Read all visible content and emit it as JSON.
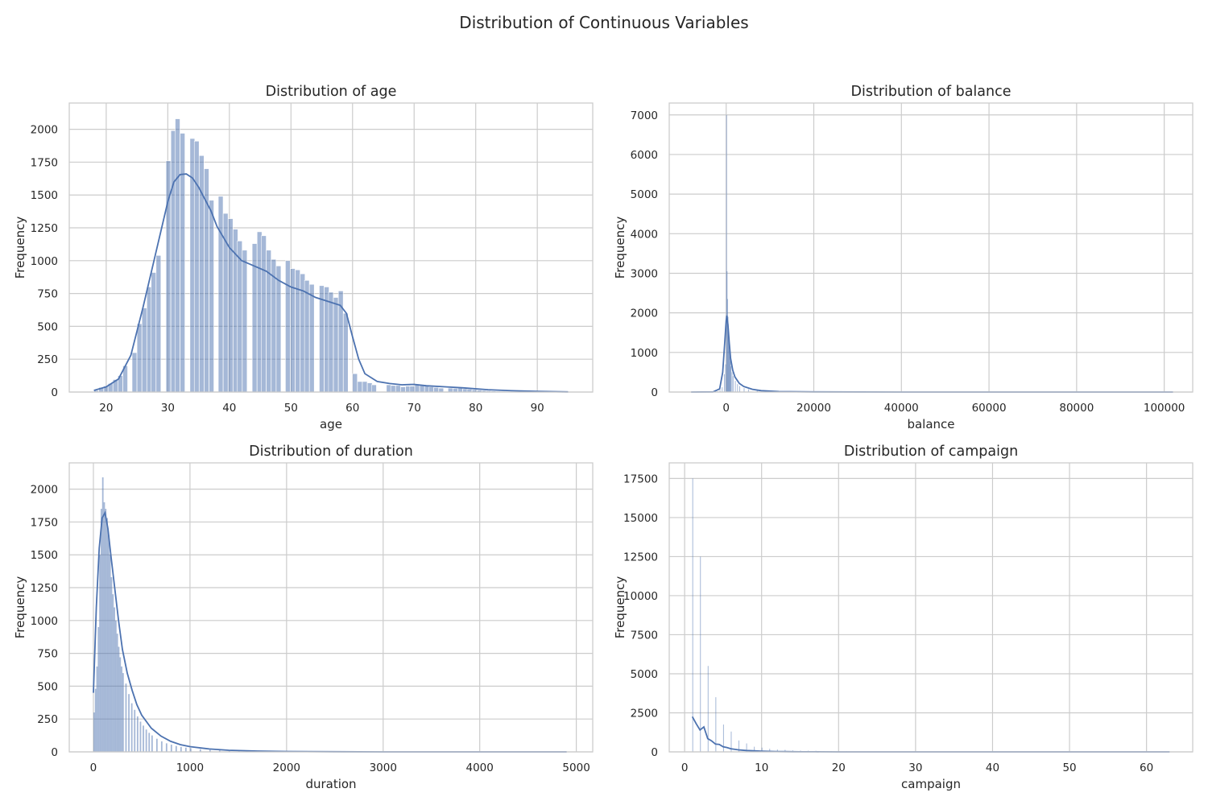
{
  "suptitle": "Distribution of Continuous Variables",
  "colors": {
    "bar": "#4c72b0",
    "bar_fill_opacity": 0.5,
    "kde": "#4c72b0",
    "grid": "#cccccc",
    "spine": "#cccccc"
  },
  "chart_data": [
    {
      "type": "histogram",
      "title": "Distribution of age",
      "xlabel": "age",
      "ylabel": "Frequency",
      "xlim": [
        14,
        99
      ],
      "ylim": [
        0,
        2200
      ],
      "xticks": [
        20,
        30,
        40,
        50,
        60,
        70,
        80,
        90
      ],
      "yticks": [
        0,
        250,
        500,
        750,
        1000,
        1250,
        1500,
        1750,
        2000
      ],
      "grid": true,
      "bin_width": 0.78,
      "bins": [
        [
          18.0,
          12
        ],
        [
          18.8,
          35
        ],
        [
          19.6,
          45
        ],
        [
          20.3,
          65
        ],
        [
          21.1,
          95
        ],
        [
          21.9,
          125
        ],
        [
          22.7,
          200
        ],
        [
          24.2,
          300
        ],
        [
          25.0,
          520
        ],
        [
          25.8,
          640
        ],
        [
          26.6,
          800
        ],
        [
          27.3,
          910
        ],
        [
          28.1,
          1040
        ],
        [
          29.7,
          1760
        ],
        [
          30.5,
          1990
        ],
        [
          31.2,
          2080
        ],
        [
          32.0,
          1970
        ],
        [
          33.6,
          1930
        ],
        [
          34.3,
          1910
        ],
        [
          35.1,
          1800
        ],
        [
          35.9,
          1700
        ],
        [
          36.7,
          1460
        ],
        [
          38.2,
          1490
        ],
        [
          39.0,
          1360
        ],
        [
          39.8,
          1320
        ],
        [
          40.6,
          1240
        ],
        [
          41.3,
          1150
        ],
        [
          42.1,
          1080
        ],
        [
          43.7,
          1130
        ],
        [
          44.5,
          1220
        ],
        [
          45.2,
          1190
        ],
        [
          46.0,
          1080
        ],
        [
          46.8,
          1010
        ],
        [
          47.6,
          960
        ],
        [
          49.1,
          1000
        ],
        [
          49.9,
          940
        ],
        [
          50.7,
          930
        ],
        [
          51.5,
          900
        ],
        [
          52.2,
          850
        ],
        [
          53.0,
          820
        ],
        [
          54.6,
          810
        ],
        [
          55.4,
          800
        ],
        [
          56.1,
          760
        ],
        [
          56.9,
          720
        ],
        [
          57.7,
          770
        ],
        [
          58.5,
          600
        ],
        [
          60.0,
          140
        ],
        [
          60.8,
          80
        ],
        [
          61.6,
          80
        ],
        [
          62.4,
          70
        ],
        [
          63.1,
          55
        ],
        [
          65.5,
          55
        ],
        [
          66.2,
          50
        ],
        [
          67.0,
          50
        ],
        [
          67.8,
          40
        ],
        [
          68.6,
          45
        ],
        [
          69.3,
          45
        ],
        [
          70.1,
          60
        ],
        [
          70.9,
          55
        ],
        [
          71.7,
          45
        ],
        [
          72.4,
          40
        ],
        [
          73.2,
          35
        ],
        [
          74.0,
          30
        ],
        [
          75.5,
          30
        ],
        [
          76.3,
          28
        ],
        [
          77.1,
          30
        ],
        [
          77.9,
          25
        ],
        [
          78.6,
          22
        ],
        [
          79.4,
          18
        ],
        [
          80.2,
          15
        ],
        [
          81.0,
          12
        ],
        [
          81.7,
          10
        ],
        [
          82.5,
          8
        ],
        [
          83.3,
          6
        ],
        [
          84.8,
          5
        ],
        [
          85.6,
          4
        ],
        [
          86.4,
          4
        ],
        [
          87.2,
          3
        ],
        [
          89.5,
          2
        ],
        [
          92.6,
          1
        ],
        [
          95.0,
          1
        ]
      ],
      "kde": [
        [
          18,
          12
        ],
        [
          20,
          40
        ],
        [
          22,
          100
        ],
        [
          24,
          280
        ],
        [
          26,
          650
        ],
        [
          28,
          1050
        ],
        [
          30,
          1450
        ],
        [
          31,
          1600
        ],
        [
          32,
          1655
        ],
        [
          33,
          1660
        ],
        [
          34,
          1630
        ],
        [
          35,
          1560
        ],
        [
          36,
          1470
        ],
        [
          37,
          1380
        ],
        [
          38,
          1260
        ],
        [
          40,
          1100
        ],
        [
          42,
          1000
        ],
        [
          44,
          960
        ],
        [
          46,
          920
        ],
        [
          48,
          850
        ],
        [
          50,
          800
        ],
        [
          52,
          770
        ],
        [
          54,
          720
        ],
        [
          56,
          690
        ],
        [
          58,
          660
        ],
        [
          59,
          600
        ],
        [
          60,
          420
        ],
        [
          61,
          250
        ],
        [
          62,
          140
        ],
        [
          64,
          80
        ],
        [
          66,
          65
        ],
        [
          68,
          55
        ],
        [
          70,
          58
        ],
        [
          72,
          48
        ],
        [
          75,
          40
        ],
        [
          78,
          32
        ],
        [
          82,
          18
        ],
        [
          86,
          10
        ],
        [
          90,
          5
        ],
        [
          95,
          1
        ]
      ]
    },
    {
      "type": "histogram",
      "title": "Distribution of balance",
      "xlabel": "balance",
      "ylabel": "Frequency",
      "xlim": [
        -13000,
        106500
      ],
      "ylim": [
        0,
        7300
      ],
      "xticks": [
        0,
        20000,
        40000,
        60000,
        80000,
        100000
      ],
      "yticks": [
        0,
        1000,
        2000,
        3000,
        4000,
        5000,
        6000,
        7000
      ],
      "grid": true,
      "bin_width": 110,
      "bins": [
        [
          -8000,
          2
        ],
        [
          -2000,
          20
        ],
        [
          -1500,
          50
        ],
        [
          -1000,
          120
        ],
        [
          -500,
          450
        ],
        [
          -220,
          700
        ],
        [
          0,
          7000
        ],
        [
          110,
          3050
        ],
        [
          220,
          2350
        ],
        [
          330,
          1900
        ],
        [
          440,
          1500
        ],
        [
          550,
          1250
        ],
        [
          660,
          1050
        ],
        [
          770,
          900
        ],
        [
          880,
          780
        ],
        [
          1000,
          650
        ],
        [
          1250,
          500
        ],
        [
          1500,
          400
        ],
        [
          2000,
          280
        ],
        [
          2500,
          200
        ],
        [
          3000,
          150
        ],
        [
          4000,
          100
        ],
        [
          5000,
          70
        ],
        [
          7000,
          40
        ],
        [
          10000,
          20
        ],
        [
          15000,
          8
        ],
        [
          20000,
          4
        ],
        [
          30000,
          2
        ],
        [
          50000,
          1
        ],
        [
          70000,
          1
        ],
        [
          100000,
          1
        ]
      ],
      "kde": [
        [
          -8000,
          0
        ],
        [
          -3000,
          5
        ],
        [
          -1500,
          80
        ],
        [
          -800,
          500
        ],
        [
          -300,
          1300
        ],
        [
          0,
          1800
        ],
        [
          150,
          1930
        ],
        [
          400,
          1700
        ],
        [
          700,
          1250
        ],
        [
          1000,
          850
        ],
        [
          1500,
          550
        ],
        [
          2000,
          380
        ],
        [
          3000,
          220
        ],
        [
          4000,
          140
        ],
        [
          6000,
          70
        ],
        [
          8000,
          35
        ],
        [
          12000,
          12
        ],
        [
          20000,
          4
        ],
        [
          40000,
          1
        ],
        [
          70000,
          0
        ],
        [
          102000,
          0
        ]
      ]
    },
    {
      "type": "histogram",
      "title": "Distribution of duration",
      "xlabel": "duration",
      "ylabel": "Frequency",
      "xlim": [
        -250,
        5170
      ],
      "ylim": [
        0,
        2200
      ],
      "xticks": [
        0,
        1000,
        2000,
        3000,
        4000,
        5000
      ],
      "yticks": [
        0,
        250,
        500,
        750,
        1000,
        1250,
        1500,
        1750,
        2000
      ],
      "grid": true,
      "bin_width": 15,
      "bins": [
        [
          0,
          300
        ],
        [
          15,
          480
        ],
        [
          30,
          650
        ],
        [
          45,
          950
        ],
        [
          60,
          1500
        ],
        [
          75,
          1850
        ],
        [
          90,
          2090
        ],
        [
          105,
          1900
        ],
        [
          120,
          1850
        ],
        [
          135,
          1780
        ],
        [
          150,
          1650
        ],
        [
          165,
          1500
        ],
        [
          180,
          1330
        ],
        [
          195,
          1200
        ],
        [
          210,
          1100
        ],
        [
          225,
          1000
        ],
        [
          240,
          900
        ],
        [
          255,
          800
        ],
        [
          270,
          720
        ],
        [
          285,
          650
        ],
        [
          300,
          600
        ],
        [
          330,
          520
        ],
        [
          360,
          440
        ],
        [
          390,
          370
        ],
        [
          420,
          320
        ],
        [
          450,
          270
        ],
        [
          480,
          230
        ],
        [
          510,
          200
        ],
        [
          540,
          170
        ],
        [
          570,
          145
        ],
        [
          600,
          125
        ],
        [
          650,
          100
        ],
        [
          700,
          80
        ],
        [
          750,
          65
        ],
        [
          800,
          55
        ],
        [
          850,
          45
        ],
        [
          900,
          38
        ],
        [
          950,
          32
        ],
        [
          1000,
          28
        ],
        [
          1100,
          20
        ],
        [
          1200,
          15
        ],
        [
          1300,
          11
        ],
        [
          1400,
          8
        ],
        [
          1500,
          6
        ],
        [
          1700,
          4
        ],
        [
          2000,
          2
        ],
        [
          2500,
          1
        ],
        [
          3000,
          1
        ],
        [
          3500,
          0
        ],
        [
          4900,
          1
        ]
      ],
      "kde": [
        [
          0,
          450
        ],
        [
          30,
          1100
        ],
        [
          60,
          1550
        ],
        [
          90,
          1780
        ],
        [
          120,
          1820
        ],
        [
          150,
          1700
        ],
        [
          180,
          1500
        ],
        [
          220,
          1250
        ],
        [
          260,
          1000
        ],
        [
          300,
          780
        ],
        [
          350,
          600
        ],
        [
          400,
          470
        ],
        [
          450,
          360
        ],
        [
          500,
          280
        ],
        [
          600,
          180
        ],
        [
          700,
          120
        ],
        [
          800,
          80
        ],
        [
          900,
          55
        ],
        [
          1000,
          40
        ],
        [
          1200,
          22
        ],
        [
          1400,
          12
        ],
        [
          1700,
          6
        ],
        [
          2000,
          3
        ],
        [
          2500,
          1
        ],
        [
          3000,
          0
        ],
        [
          4900,
          0
        ]
      ]
    },
    {
      "type": "histogram",
      "title": "Distribution of campaign",
      "xlabel": "campaign",
      "ylabel": "Frequency",
      "xlim": [
        -2,
        66
      ],
      "ylim": [
        0,
        18500
      ],
      "xticks": [
        0,
        10,
        20,
        30,
        40,
        50,
        60
      ],
      "yticks": [
        0,
        2500,
        5000,
        7500,
        10000,
        12500,
        15000,
        17500
      ],
      "grid": true,
      "bin_width": 0.08,
      "bins": [
        [
          1,
          17500
        ],
        [
          2,
          12500
        ],
        [
          3,
          5500
        ],
        [
          4,
          3500
        ],
        [
          5,
          1750
        ],
        [
          6,
          1300
        ],
        [
          7,
          730
        ],
        [
          8,
          540
        ],
        [
          9,
          330
        ],
        [
          10,
          270
        ],
        [
          11,
          200
        ],
        [
          12,
          150
        ],
        [
          13,
          130
        ],
        [
          14,
          90
        ],
        [
          15,
          80
        ],
        [
          16,
          70
        ],
        [
          17,
          65
        ],
        [
          18,
          50
        ],
        [
          19,
          45
        ],
        [
          20,
          40
        ],
        [
          21,
          35
        ],
        [
          22,
          25
        ],
        [
          23,
          22
        ],
        [
          24,
          20
        ],
        [
          25,
          18
        ],
        [
          26,
          15
        ],
        [
          28,
          12
        ],
        [
          29,
          10
        ],
        [
          30,
          8
        ],
        [
          31,
          7
        ],
        [
          32,
          6
        ],
        [
          33,
          5
        ],
        [
          34,
          5
        ],
        [
          35,
          4
        ],
        [
          36,
          4
        ],
        [
          37,
          3
        ],
        [
          38,
          3
        ],
        [
          39,
          2
        ],
        [
          41,
          2
        ],
        [
          43,
          2
        ],
        [
          44,
          1
        ],
        [
          50,
          1
        ],
        [
          51,
          1
        ],
        [
          55,
          1
        ],
        [
          58,
          1
        ],
        [
          63,
          1
        ]
      ],
      "kde": [
        [
          1,
          2250
        ],
        [
          1.5,
          1800
        ],
        [
          2,
          1400
        ],
        [
          2.5,
          1600
        ],
        [
          3,
          850
        ],
        [
          3.5,
          700
        ],
        [
          4,
          500
        ],
        [
          4.5,
          480
        ],
        [
          5,
          330
        ],
        [
          5.5,
          280
        ],
        [
          6,
          200
        ],
        [
          7,
          130
        ],
        [
          8,
          90
        ],
        [
          9,
          65
        ],
        [
          10,
          45
        ],
        [
          11,
          30
        ],
        [
          12,
          22
        ],
        [
          13,
          15
        ],
        [
          14,
          10
        ],
        [
          15,
          6
        ],
        [
          17,
          3
        ],
        [
          20,
          1
        ],
        [
          25,
          0
        ],
        [
          40,
          0
        ],
        [
          63,
          0
        ]
      ]
    }
  ]
}
